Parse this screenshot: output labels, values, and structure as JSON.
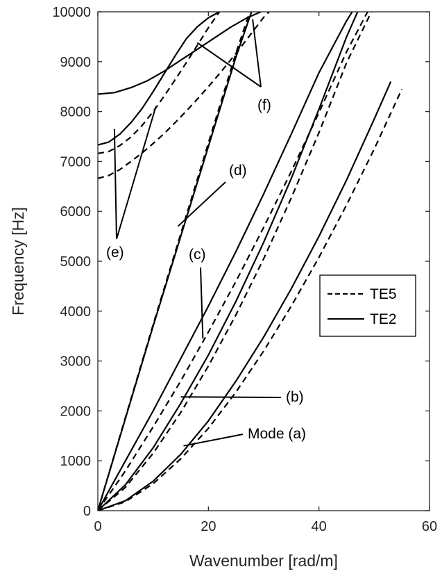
{
  "chart_data": {
    "type": "line",
    "title": "",
    "xlabel": "Wavenumber [rad/m]",
    "ylabel": "Frequency [Hz]",
    "xlim": [
      0,
      60
    ],
    "ylim": [
      0,
      10000
    ],
    "xticks": [
      "0",
      "20",
      "40",
      "60"
    ],
    "yticks": [
      "0",
      "1000",
      "2000",
      "3000",
      "4000",
      "5000",
      "6000",
      "7000",
      "8000",
      "9000",
      "10000"
    ],
    "grid": false,
    "legend": {
      "placement": "right",
      "entries": [
        {
          "name": "TE5",
          "style": "dashed"
        },
        {
          "name": "TE2",
          "style": "solid"
        }
      ]
    },
    "series": [
      {
        "mode": "a",
        "style": "solid",
        "x": [
          0,
          5,
          10,
          15,
          20,
          25,
          30,
          35,
          40,
          45,
          50,
          53
        ],
        "y": [
          0,
          200,
          590,
          1130,
          1800,
          2600,
          3480,
          4450,
          5500,
          6630,
          7850,
          8600
        ]
      },
      {
        "mode": "a",
        "style": "dashed",
        "x": [
          0,
          5,
          10,
          15,
          20,
          25,
          30,
          35,
          40,
          45,
          50,
          55
        ],
        "y": [
          0,
          180,
          540,
          1040,
          1650,
          2380,
          3200,
          4100,
          5080,
          6130,
          7250,
          8450
        ]
      },
      {
        "mode": "b",
        "style": "solid",
        "x": [
          0,
          5,
          10,
          15,
          20,
          25,
          30,
          35,
          40,
          45,
          47
        ],
        "y": [
          0,
          520,
          1260,
          2150,
          3120,
          4200,
          5380,
          6660,
          8050,
          9500,
          10000
        ]
      },
      {
        "mode": "b",
        "style": "dashed",
        "x": [
          0,
          5,
          10,
          15,
          20,
          25,
          30,
          35,
          40,
          45,
          49.5
        ],
        "y": [
          0,
          470,
          1150,
          1970,
          2900,
          3930,
          5050,
          6270,
          7580,
          8980,
          10000
        ]
      },
      {
        "mode": "c",
        "style": "solid",
        "x": [
          0,
          5,
          10,
          15,
          20,
          25,
          30,
          35,
          40,
          45,
          46
        ],
        "y": [
          0,
          1000,
          2000,
          3050,
          4100,
          5200,
          6350,
          7550,
          8780,
          9820,
          10000
        ]
      },
      {
        "mode": "c",
        "style": "dashed",
        "x": [
          0,
          5,
          10,
          15,
          20,
          25,
          30,
          35,
          40,
          45,
          48.8
        ],
        "y": [
          0,
          800,
          1680,
          2600,
          3580,
          4600,
          5680,
          6800,
          7980,
          9200,
          10000
        ]
      },
      {
        "mode": "d",
        "style": "solid",
        "x": [
          0,
          5,
          10,
          15,
          20,
          25,
          27.8
        ],
        "y": [
          0,
          1850,
          3700,
          5500,
          7300,
          9100,
          10000
        ]
      },
      {
        "mode": "d",
        "style": "dashed",
        "x": [
          0,
          5,
          10,
          15,
          20,
          25,
          27.5
        ],
        "y": [
          0,
          1870,
          3730,
          5550,
          7370,
          9180,
          10000
        ]
      },
      {
        "mode": "e",
        "style": "solid",
        "x": [
          0,
          2,
          4,
          6,
          8,
          10,
          12,
          14,
          16,
          18,
          20,
          22
        ],
        "y": [
          7330,
          7390,
          7550,
          7780,
          8060,
          8400,
          8760,
          9120,
          9460,
          9700,
          9880,
          10000
        ]
      },
      {
        "mode": "e",
        "style": "dashed",
        "x": [
          0,
          2,
          4,
          6,
          8,
          10,
          12,
          14,
          16,
          18,
          20,
          22
        ],
        "y": [
          7160,
          7200,
          7320,
          7490,
          7720,
          8000,
          8310,
          8640,
          8980,
          9330,
          9680,
          10000
        ]
      },
      {
        "mode": "e",
        "style": "dashed",
        "x": [
          0,
          2,
          4,
          6,
          8,
          10,
          12,
          14,
          16,
          18,
          20,
          22,
          24,
          26,
          28,
          30,
          31
        ],
        "y": [
          6660,
          6720,
          6840,
          7000,
          7170,
          7360,
          7560,
          7780,
          8010,
          8250,
          8500,
          8760,
          9030,
          9310,
          9600,
          9890,
          10000
        ]
      },
      {
        "mode": "f",
        "style": "solid",
        "x": [
          0,
          3,
          6,
          9,
          12,
          15,
          18,
          21,
          24,
          27,
          29.5
        ],
        "y": [
          8350,
          8380,
          8480,
          8620,
          8810,
          9030,
          9250,
          9470,
          9690,
          9880,
          10000
        ]
      }
    ],
    "annotations": [
      {
        "label": "Mode (a)",
        "at": [
          15.5,
          1300
        ]
      },
      {
        "label": "(b)",
        "at": [
          15,
          2280
        ]
      },
      {
        "label": "(c)",
        "at": [
          19,
          3450
        ]
      },
      {
        "label": "(d)",
        "at": [
          14.5,
          5700
        ]
      },
      {
        "label": "(e)",
        "at": [
          3,
          7650
        ]
      },
      {
        "label": "(e)",
        "at": [
          10.5,
          8100
        ]
      },
      {
        "label": "(f)",
        "at": [
          18,
          9380
        ]
      },
      {
        "label": "(f)",
        "at": [
          28,
          9850
        ]
      }
    ]
  }
}
